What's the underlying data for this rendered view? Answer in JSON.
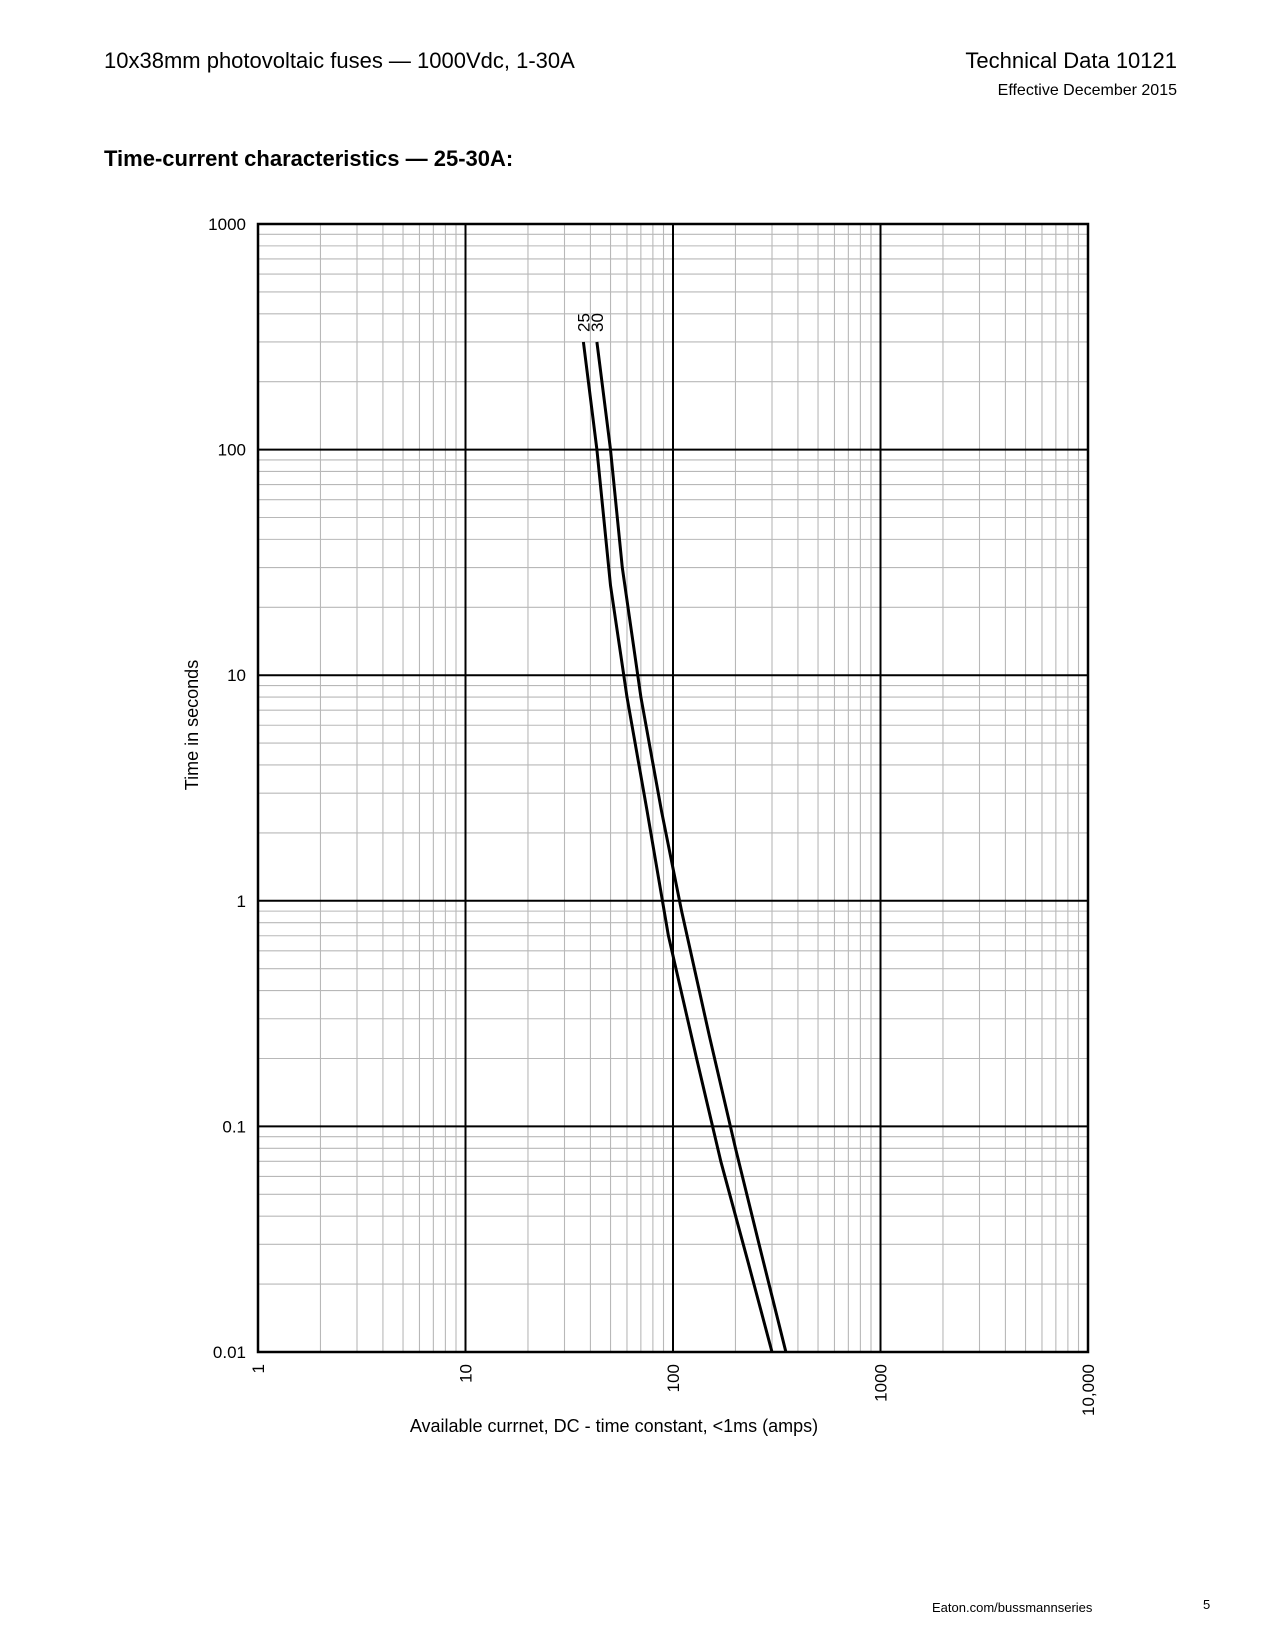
{
  "header": {
    "doc_title": "10x38mm photovoltaic fuses — 1000Vdc, 1-30A",
    "doc_number": "Technical Data 10121",
    "effective_date": "Effective December 2015"
  },
  "section_title": "Time-current characteristics — 25-30A:",
  "footer": {
    "url": "Eaton.com/bussmannseries",
    "page_number": "5"
  },
  "chart_data": {
    "type": "line",
    "title": "",
    "xlabel": "Available currnet, DC - time constant, <1ms (amps)",
    "ylabel": "Time in seconds",
    "x_scale": "log",
    "y_scale": "log",
    "xlim": [
      1,
      10000
    ],
    "ylim": [
      0.01,
      1000
    ],
    "x_tick_labels": [
      "1",
      "10",
      "100",
      "1000",
      "10,000"
    ],
    "y_tick_labels": [
      "0.01",
      "0.1",
      "1",
      "10",
      "100",
      "1000"
    ],
    "grid": true,
    "series": [
      {
        "name": "25",
        "points": [
          [
            37,
            300
          ],
          [
            43,
            100
          ],
          [
            50,
            25
          ],
          [
            60,
            8
          ],
          [
            75,
            2.5
          ],
          [
            95,
            0.7
          ],
          [
            130,
            0.2
          ],
          [
            170,
            0.07
          ],
          [
            230,
            0.025
          ],
          [
            300,
            0.01
          ]
        ]
      },
      {
        "name": "30",
        "points": [
          [
            43,
            300
          ],
          [
            50,
            100
          ],
          [
            57,
            30
          ],
          [
            70,
            8
          ],
          [
            88,
            2.5
          ],
          [
            110,
            0.9
          ],
          [
            150,
            0.25
          ],
          [
            200,
            0.08
          ],
          [
            260,
            0.03
          ],
          [
            350,
            0.01
          ]
        ]
      }
    ]
  }
}
